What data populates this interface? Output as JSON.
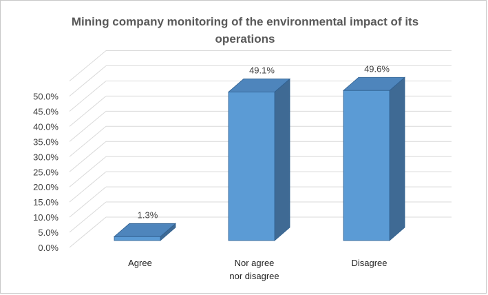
{
  "chart_data": {
    "type": "bar",
    "title": "Mining company monitoring of the environmental impact of its operations",
    "categories": [
      "Agree",
      "Nor agree nor disagree",
      "Disagree"
    ],
    "category_lines": [
      [
        "Agree"
      ],
      [
        "Nor agree",
        "nor disagree"
      ],
      [
        "Disagree"
      ]
    ],
    "values": [
      1.3,
      49.1,
      49.6
    ],
    "data_labels": [
      "1.3%",
      "49.1%",
      "49.6%"
    ],
    "ylim": [
      0,
      50
    ],
    "yticks": [
      "0.0%",
      "5.0%",
      "10.0%",
      "15.0%",
      "20.0%",
      "25.0%",
      "30.0%",
      "35.0%",
      "40.0%",
      "45.0%",
      "50.0%"
    ],
    "ytick_values": [
      0,
      5,
      10,
      15,
      20,
      25,
      30,
      35,
      40,
      45,
      50
    ],
    "grid": true,
    "legend": "none",
    "colors": {
      "front": "#5b9bd5",
      "side": "#3f6a94",
      "top": "#4e85bc",
      "edge": "#2f5f8f",
      "grid": "#d9d9d9"
    }
  }
}
